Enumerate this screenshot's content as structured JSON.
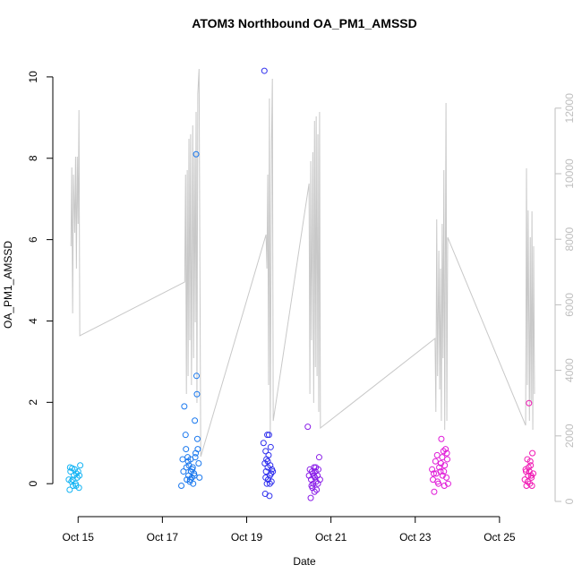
{
  "chart_data": {
    "type": "scatter",
    "title": "ATOM3 Northbound OA_PM1_AMSSD",
    "xlabel": "Date",
    "ylabel": "OA_PM1_AMSSD",
    "xlim": [
      14.4,
      26.32
    ],
    "ylim": [
      -0.81,
      10.57
    ],
    "y2lim": [
      -464,
      13661
    ],
    "xticks": [
      {
        "value": 15,
        "label": "Oct 15"
      },
      {
        "value": 17,
        "label": "Oct 17"
      },
      {
        "value": 19,
        "label": "Oct 19"
      },
      {
        "value": 21,
        "label": "Oct 21"
      },
      {
        "value": 23,
        "label": "Oct 23"
      },
      {
        "value": 25,
        "label": "Oct 25"
      }
    ],
    "yticks": [
      0,
      2,
      4,
      6,
      8,
      10
    ],
    "y2ticks": [
      0,
      2000,
      4000,
      6000,
      8000,
      10000,
      12000
    ],
    "y2color": "#bebebe",
    "series": [
      {
        "type": "line",
        "axis": "y2",
        "color": "#c8c8c8",
        "x": [
          14.83,
          14.85,
          14.87,
          14.89,
          14.92,
          14.94,
          14.96,
          14.98,
          15.0,
          15.02,
          15.04,
          17.53,
          17.55,
          17.57,
          17.59,
          17.61,
          17.63,
          17.65,
          17.67,
          17.69,
          17.72,
          17.74,
          17.76,
          17.78,
          17.8,
          17.82,
          17.84,
          17.87,
          17.91,
          19.46,
          19.48,
          19.5,
          19.52,
          19.54,
          19.56,
          19.59,
          19.61,
          19.63,
          20.48,
          20.5,
          20.52,
          20.54,
          20.57,
          20.59,
          20.61,
          20.63,
          20.65,
          20.67,
          20.69,
          20.71,
          20.73,
          20.75,
          23.47,
          23.49,
          23.51,
          23.53,
          23.56,
          23.58,
          23.6,
          23.62,
          23.64,
          23.66,
          23.68,
          23.7,
          23.73,
          23.75,
          23.77,
          25.62,
          25.64,
          25.66,
          25.68,
          25.71,
          25.73,
          25.75,
          25.77,
          25.79,
          25.81,
          25.83
        ],
        "values": [
          7787,
          10191,
          5738,
          9973,
          8197,
          10519,
          7104,
          10519,
          8470,
          11940,
          5055,
          6694,
          9973,
          3279,
          10109,
          3825,
          11066,
          4918,
          11202,
          3552,
          11475,
          4372,
          10656,
          5464,
          11885,
          3005,
          12432,
          13197,
          1366,
          8142,
          7104,
          9973,
          3552,
          12295,
          2049,
          10929,
          12896,
          2459,
          9699,
          3279,
          10382,
          4918,
          10656,
          3005,
          11612,
          4098,
          11748,
          3825,
          11202,
          2732,
          11885,
          2240,
          4973,
          2732,
          8607,
          3825,
          7650,
          3415,
          7104,
          2459,
          8470,
          4372,
          10109,
          2186,
          12158,
          2459,
          8060,
          2322,
          10164,
          3552,
          8880,
          2459,
          8060,
          3005,
          8852,
          2186,
          7787,
          3279
        ]
      },
      {
        "color": "#14b4f4",
        "x": [
          14.78,
          14.8,
          14.82,
          14.84,
          14.86,
          14.88,
          14.9,
          14.92,
          14.94,
          14.96,
          14.98,
          15.0,
          15.02,
          15.05,
          14.81,
          14.87,
          14.95,
          15.03
        ],
        "values": [
          0.1,
          -0.15,
          0.3,
          0.05,
          0.38,
          -0.05,
          0.2,
          0.35,
          0.0,
          0.25,
          0.15,
          0.3,
          -0.1,
          0.45,
          0.4,
          0.1,
          -0.05,
          0.2
        ]
      },
      {
        "color": "#1a78ee",
        "x": [
          17.45,
          17.48,
          17.5,
          17.52,
          17.55,
          17.57,
          17.58,
          17.6,
          17.62,
          17.63,
          17.65,
          17.67,
          17.68,
          17.7,
          17.72,
          17.73,
          17.75,
          17.77,
          17.78,
          17.8,
          17.81,
          17.82,
          17.83,
          17.84,
          17.86,
          17.88,
          17.56,
          17.61,
          17.66,
          17.71,
          17.76,
          17.79
        ],
        "values": [
          -0.05,
          0.6,
          0.3,
          1.9,
          1.2,
          0.4,
          0.1,
          0.65,
          0.2,
          0.45,
          0.05,
          0.6,
          0.3,
          0.15,
          0.4,
          0.0,
          0.25,
          1.55,
          0.65,
          8.1,
          2.65,
          2.2,
          1.1,
          0.85,
          0.5,
          0.15,
          0.85,
          0.55,
          0.1,
          0.35,
          0.2,
          0.75
        ]
      },
      {
        "color": "#2f2fee",
        "x": [
          19.4,
          19.42,
          19.43,
          19.44,
          19.45,
          19.46,
          19.47,
          19.48,
          19.49,
          19.5,
          19.51,
          19.52,
          19.53,
          19.54,
          19.55,
          19.56,
          19.57,
          19.58,
          19.59,
          19.6,
          19.62,
          19.45,
          19.5,
          19.55
        ],
        "values": [
          1.0,
          10.15,
          0.5,
          -0.25,
          0.8,
          0.3,
          0.6,
          0.0,
          1.2,
          0.4,
          0.1,
          0.7,
          1.2,
          -0.3,
          0.2,
          0.45,
          0.9,
          0.25,
          0.05,
          0.35,
          0.3,
          0.15,
          0.55,
          0.0
        ]
      },
      {
        "color": "#8a1ee8",
        "x": [
          20.45,
          20.48,
          20.5,
          20.52,
          20.53,
          20.55,
          20.56,
          20.57,
          20.58,
          20.6,
          20.61,
          20.62,
          20.63,
          20.65,
          20.66,
          20.68,
          20.7,
          20.72,
          20.74,
          20.54,
          20.59,
          20.64,
          20.69
        ],
        "values": [
          1.4,
          0.2,
          0.35,
          -0.35,
          0.1,
          0.3,
          -0.1,
          0.25,
          0.0,
          0.4,
          -0.2,
          0.15,
          0.3,
          0.05,
          -0.15,
          0.2,
          0.35,
          0.65,
          0.1,
          -0.05,
          0.2,
          0.4,
          0.0
        ]
      },
      {
        "color": "#e01ad8",
        "x": [
          23.4,
          23.42,
          23.45,
          23.48,
          23.5,
          23.52,
          23.55,
          23.57,
          23.6,
          23.62,
          23.64,
          23.65,
          23.67,
          23.69,
          23.7,
          23.72,
          23.74,
          23.76,
          23.78,
          23.44,
          23.53,
          23.61,
          23.68,
          23.75
        ],
        "values": [
          0.35,
          0.1,
          -0.2,
          0.55,
          0.25,
          0.7,
          0.0,
          0.4,
          0.3,
          1.1,
          0.65,
          0.2,
          0.8,
          -0.05,
          0.45,
          0.85,
          0.15,
          0.6,
          0.0,
          0.25,
          0.05,
          0.5,
          0.3,
          0.75
        ]
      },
      {
        "color": "#f01ab4",
        "x": [
          25.6,
          25.62,
          25.64,
          25.66,
          25.68,
          25.7,
          25.71,
          25.72,
          25.74,
          25.76,
          25.78,
          25.8,
          25.63,
          25.67,
          25.73,
          25.77,
          25.69,
          25.75
        ],
        "values": [
          0.1,
          0.35,
          -0.05,
          0.6,
          0.2,
          1.98,
          0.3,
          0.0,
          0.45,
          0.15,
          0.75,
          0.25,
          0.3,
          0.05,
          0.55,
          -0.05,
          0.4,
          0.2
        ]
      }
    ]
  }
}
